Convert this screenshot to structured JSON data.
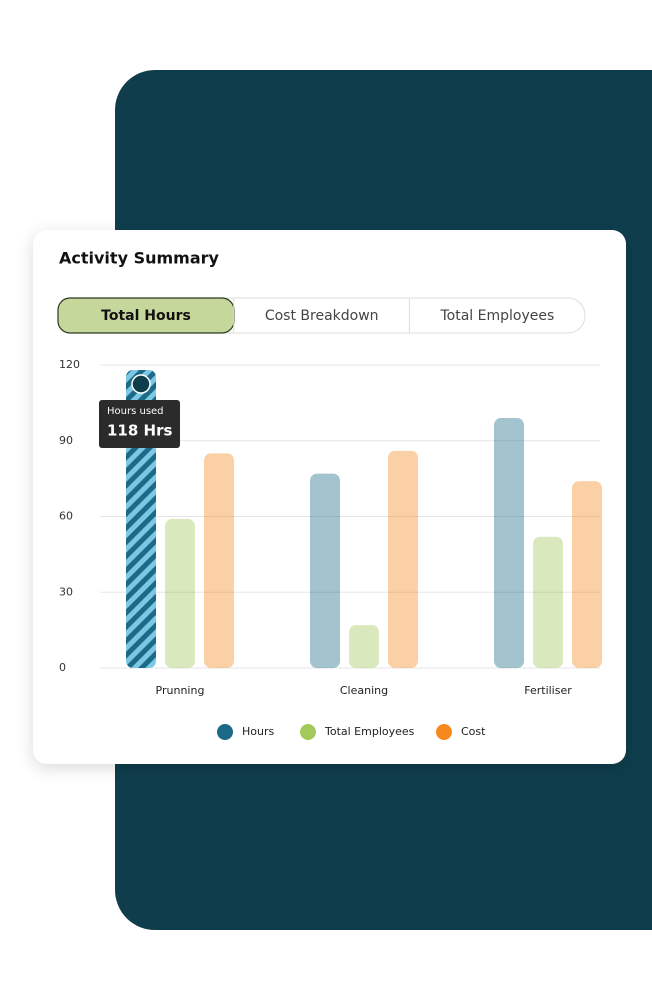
{
  "tabs": [
    "Total Hours",
    "Cost Breakdown",
    "Total Employees"
  ],
  "chart_data": {
    "type": "bar",
    "title": "Activity Summary",
    "categories": [
      "Prunning",
      "Cleaning",
      "Fertiliser"
    ],
    "series": [
      {
        "name": "Hours",
        "color": "#1a6a88",
        "values": [
          118,
          77,
          99
        ]
      },
      {
        "name": "Total Employees",
        "color": "#a3c95a",
        "values": [
          59,
          17,
          52
        ]
      },
      {
        "name": "Cost",
        "color": "#f5891e",
        "values": [
          85,
          86,
          74
        ]
      }
    ],
    "ylim": [
      0,
      120
    ],
    "yticks": [
      0,
      30,
      60,
      90,
      120
    ],
    "grid": true,
    "tooltip": {
      "title": "Hours used",
      "text": "118 Hrs"
    }
  }
}
